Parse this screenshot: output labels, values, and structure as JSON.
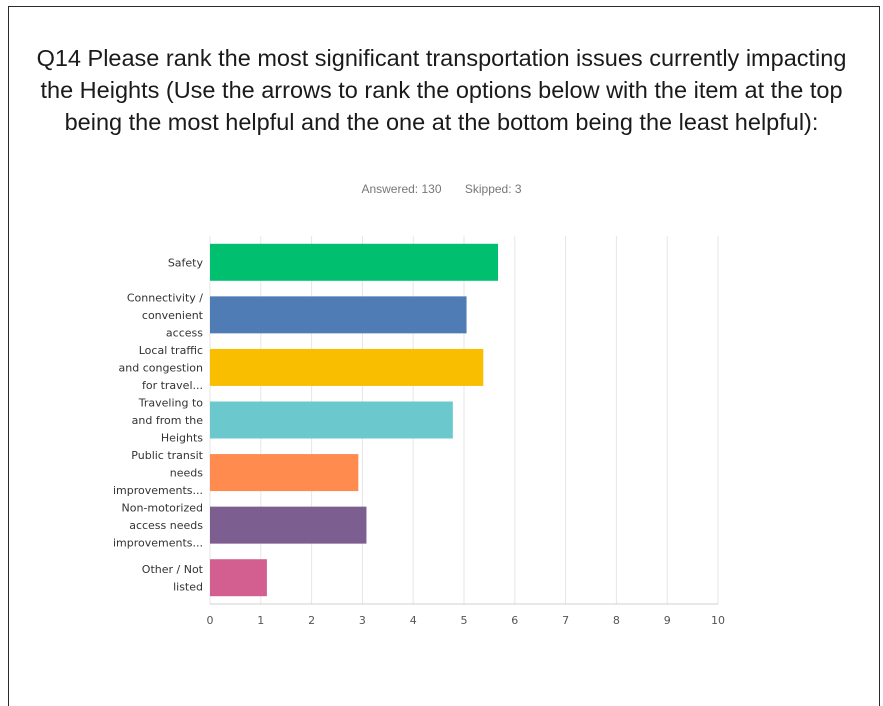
{
  "question": {
    "title": "Q14 Please rank the most significant transportation issues currently impacting the Heights (Use the arrows to rank the options below with the item at the top being the most helpful and the one at the bottom being the least helpful):",
    "answered": "Answered: 130",
    "skipped": "Skipped: 3"
  },
  "chart_data": {
    "type": "bar",
    "orientation": "horizontal",
    "categories": [
      [
        "Safety"
      ],
      [
        "Connectivity /",
        "convenient",
        "access"
      ],
      [
        "Local traffic",
        "and congestion",
        "for travel..."
      ],
      [
        "Traveling to",
        "and from the",
        "Heights"
      ],
      [
        "Public transit",
        "needs",
        "improvements..."
      ],
      [
        "Non-motorized",
        "access needs",
        "improvements..."
      ],
      [
        "Other / Not",
        "listed"
      ]
    ],
    "values": [
      5.67,
      5.05,
      5.38,
      4.78,
      2.92,
      3.08,
      1.12
    ],
    "colors": [
      "#00bf6f",
      "#507cb6",
      "#f9be00",
      "#6bc8cd",
      "#ff8b4f",
      "#7d5e90",
      "#d25f90"
    ],
    "xlim": [
      0,
      10
    ],
    "xticks": [
      "0",
      "1",
      "2",
      "3",
      "4",
      "5",
      "6",
      "7",
      "8",
      "9",
      "10"
    ],
    "grid": true,
    "legend": "none"
  }
}
